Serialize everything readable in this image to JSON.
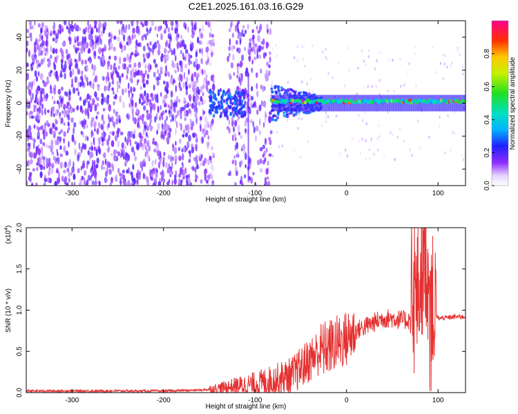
{
  "title": "C2E1.2025.161.03.16.G29",
  "chart_data": [
    {
      "type": "heatmap",
      "xlabel": "Height of straight line (km)",
      "ylabel": "Frequency (Hz)",
      "xlim": [
        -350,
        130
      ],
      "ylim": [
        -50,
        50
      ],
      "xticks": [
        -300,
        -200,
        -100,
        0,
        100
      ],
      "yticks": [
        -40,
        -20,
        0,
        20,
        40
      ],
      "grid": false,
      "colorbar": {
        "label": "Normalized spectral amplitude",
        "range": [
          0,
          1
        ],
        "ticks": [
          "0.0",
          "0.2",
          "0.4",
          "0.6",
          "0.8"
        ]
      },
      "regions": [
        {
          "x": [
            -350,
            -160
          ],
          "freq": [
            -50,
            50
          ],
          "amplitude": [
            0.05,
            0.2
          ],
          "pattern": "speckle"
        },
        {
          "x": [
            -160,
            -82
          ],
          "freq": [
            -50,
            50
          ],
          "amplitude": [
            0.05,
            0.15
          ],
          "pattern": "sparse speckle"
        },
        {
          "x": [
            -150,
            -110
          ],
          "freq": [
            -8,
            8
          ],
          "amplitude": [
            0.2,
            0.3
          ],
          "pattern": "blob"
        },
        {
          "x": [
            -82,
            130
          ],
          "freq": [
            -3,
            3
          ],
          "amplitude": [
            0.3,
            1.0
          ],
          "pattern": "narrow band near 0 Hz"
        }
      ]
    },
    {
      "type": "line",
      "xlabel": "Height of straight line (km)",
      "ylabel": "SNR (10 * v/v)",
      "yscale_label": "(x10",
      "yscale_exp": "4",
      "xlim": [
        -350,
        130
      ],
      "ylim": [
        0,
        2.0
      ],
      "xticks": [
        -300,
        -200,
        -100,
        0,
        100
      ],
      "yticks": [
        "0.0",
        "0.5",
        "1.0",
        "1.5",
        "2.0"
      ],
      "grid": false,
      "series": [
        {
          "color": "#e53030",
          "x": [
            -350,
            -300,
            -250,
            -200,
            -160,
            -140,
            -120,
            -100,
            -80,
            -60,
            -50,
            -40,
            -30,
            -20,
            -10,
            0,
            10,
            20,
            30,
            40,
            50,
            60,
            70,
            80,
            85,
            90,
            95,
            100,
            110,
            120,
            130
          ],
          "y": [
            0.02,
            0.02,
            0.02,
            0.02,
            0.03,
            0.05,
            0.08,
            0.1,
            0.15,
            0.2,
            0.3,
            0.4,
            0.5,
            0.55,
            0.6,
            0.65,
            0.75,
            0.8,
            0.85,
            0.9,
            0.9,
            0.88,
            0.88,
            1.3,
            1.7,
            1.4,
            1.0,
            0.9,
            0.91,
            0.92,
            0.92
          ]
        }
      ]
    }
  ],
  "colors": {
    "speckle_purple": "#8030ff",
    "line_red": "#e53030"
  }
}
